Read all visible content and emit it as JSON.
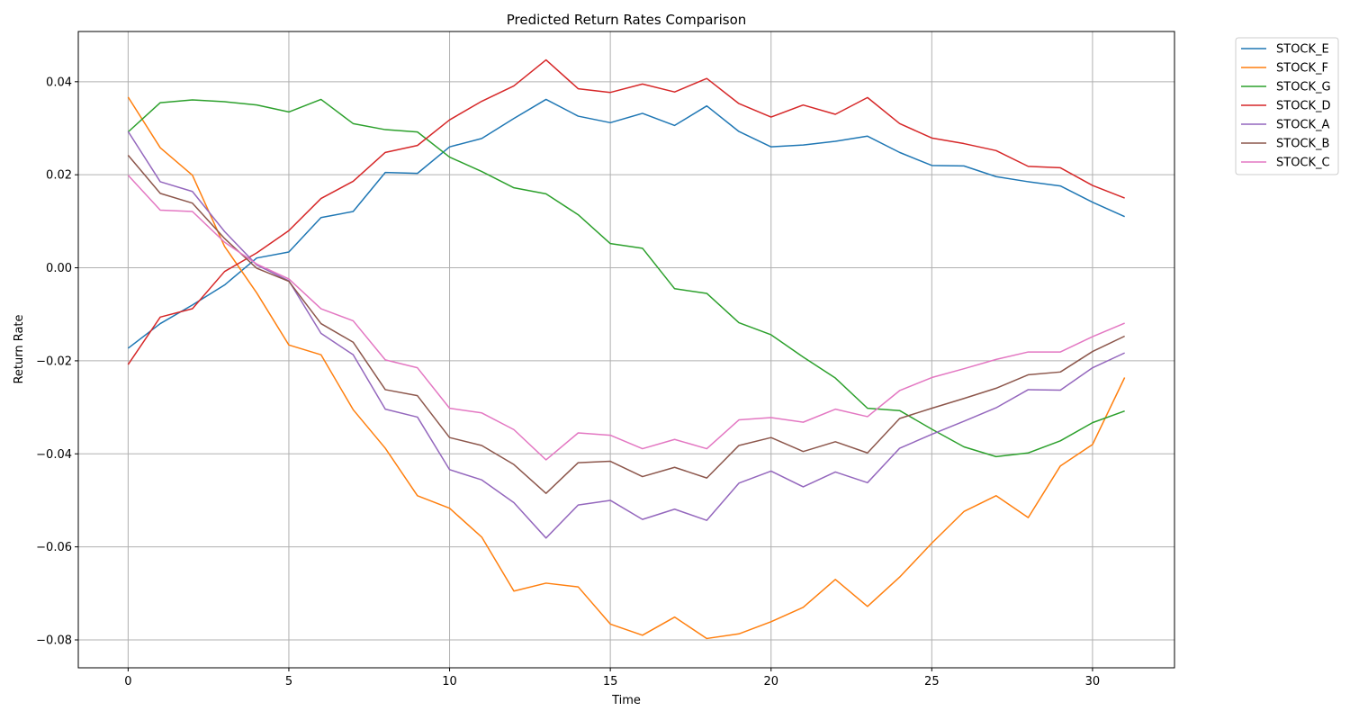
{
  "chart_data": {
    "type": "line",
    "title": "Predicted Return Rates Comparison",
    "xlabel": "Time",
    "ylabel": "Return Rate",
    "xlim": [
      -1.55,
      32.55
    ],
    "ylim": [
      -0.086,
      0.0508
    ],
    "xticks": [
      0,
      5,
      10,
      15,
      20,
      25,
      30
    ],
    "xtick_labels": [
      "0",
      "5",
      "10",
      "15",
      "20",
      "25",
      "30"
    ],
    "yticks": [
      -0.08,
      -0.06,
      -0.04,
      -0.02,
      0.0,
      0.02,
      0.04
    ],
    "ytick_labels": [
      "−0.08",
      "−0.06",
      "−0.04",
      "−0.02",
      "0.00",
      "0.02",
      "0.04"
    ],
    "grid": true,
    "legend_position": "outside-top-right",
    "x": [
      0,
      1,
      2,
      3,
      4,
      5,
      6,
      7,
      8,
      9,
      10,
      11,
      12,
      13,
      14,
      15,
      16,
      17,
      18,
      19,
      20,
      21,
      22,
      23,
      24,
      25,
      26,
      27,
      28,
      29,
      30,
      31
    ],
    "series": [
      {
        "name": "STOCK_E",
        "color": "#1f77b4",
        "values": [
          -0.0173,
          -0.012,
          -0.008,
          -0.0037,
          0.0021,
          0.0034,
          0.0108,
          0.0121,
          0.0205,
          0.0203,
          0.026,
          0.0278,
          0.0321,
          0.0362,
          0.0326,
          0.0312,
          0.0332,
          0.0306,
          0.0348,
          0.0293,
          0.026,
          0.0264,
          0.0272,
          0.0283,
          0.0248,
          0.022,
          0.0219,
          0.0196,
          0.0185,
          0.0176,
          0.0141,
          0.011
        ]
      },
      {
        "name": "STOCK_F",
        "color": "#ff7f0e",
        "values": [
          0.0367,
          0.0258,
          0.0199,
          0.0046,
          -0.0054,
          -0.0166,
          -0.0187,
          -0.0305,
          -0.0388,
          -0.049,
          -0.0517,
          -0.0579,
          -0.0695,
          -0.0678,
          -0.0686,
          -0.0766,
          -0.079,
          -0.0751,
          -0.0797,
          -0.0787,
          -0.0761,
          -0.073,
          -0.067,
          -0.0728,
          -0.0665,
          -0.0592,
          -0.0524,
          -0.049,
          -0.0537,
          -0.0426,
          -0.038,
          -0.0236
        ]
      },
      {
        "name": "STOCK_G",
        "color": "#2ca02c",
        "values": [
          0.0292,
          0.0355,
          0.0361,
          0.0357,
          0.035,
          0.0335,
          0.0362,
          0.031,
          0.0297,
          0.0292,
          0.0238,
          0.0207,
          0.0172,
          0.0159,
          0.0114,
          0.0052,
          0.0042,
          -0.0045,
          -0.0055,
          -0.0118,
          -0.0144,
          -0.0192,
          -0.0237,
          -0.0302,
          -0.0307,
          -0.0347,
          -0.0385,
          -0.0406,
          -0.0398,
          -0.0372,
          -0.0333,
          -0.0308
        ]
      },
      {
        "name": "STOCK_D",
        "color": "#d62728",
        "values": [
          -0.0208,
          -0.0106,
          -0.0088,
          -0.0008,
          0.0032,
          0.008,
          0.0149,
          0.0186,
          0.0248,
          0.0263,
          0.0318,
          0.0358,
          0.0391,
          0.0447,
          0.0385,
          0.0377,
          0.0395,
          0.0378,
          0.0407,
          0.0353,
          0.0324,
          0.035,
          0.033,
          0.0366,
          0.031,
          0.0279,
          0.0267,
          0.0252,
          0.0218,
          0.0215,
          0.0177,
          0.015
        ]
      },
      {
        "name": "STOCK_A",
        "color": "#9467bd",
        "values": [
          0.0293,
          0.0185,
          0.0164,
          0.0078,
          0.0006,
          -0.0028,
          -0.0141,
          -0.0187,
          -0.0304,
          -0.0321,
          -0.0434,
          -0.0456,
          -0.0505,
          -0.0581,
          -0.051,
          -0.05,
          -0.0541,
          -0.0519,
          -0.0543,
          -0.0463,
          -0.0437,
          -0.0471,
          -0.0439,
          -0.0462,
          -0.0388,
          -0.0358,
          -0.033,
          -0.0301,
          -0.0262,
          -0.0263,
          -0.0215,
          -0.0183
        ]
      },
      {
        "name": "STOCK_B",
        "color": "#8c564b",
        "values": [
          0.0242,
          0.016,
          0.0139,
          0.0063,
          -0.0001,
          -0.0029,
          -0.012,
          -0.016,
          -0.0262,
          -0.0275,
          -0.0365,
          -0.0382,
          -0.0423,
          -0.0485,
          -0.0419,
          -0.0416,
          -0.0449,
          -0.0429,
          -0.0452,
          -0.0382,
          -0.0365,
          -0.0395,
          -0.0374,
          -0.0398,
          -0.0324,
          -0.0302,
          -0.0281,
          -0.0259,
          -0.023,
          -0.0224,
          -0.018,
          -0.0147
        ]
      },
      {
        "name": "STOCK_C",
        "color": "#e377c2",
        "values": [
          0.0199,
          0.0124,
          0.0121,
          0.0055,
          0.0008,
          -0.0024,
          -0.0088,
          -0.0114,
          -0.0198,
          -0.0215,
          -0.0302,
          -0.0312,
          -0.0348,
          -0.0413,
          -0.0355,
          -0.036,
          -0.0389,
          -0.0369,
          -0.0389,
          -0.0327,
          -0.0322,
          -0.0332,
          -0.0304,
          -0.032,
          -0.0264,
          -0.0236,
          -0.0217,
          -0.0197,
          -0.0181,
          -0.0181,
          -0.0148,
          -0.0119
        ]
      }
    ]
  }
}
